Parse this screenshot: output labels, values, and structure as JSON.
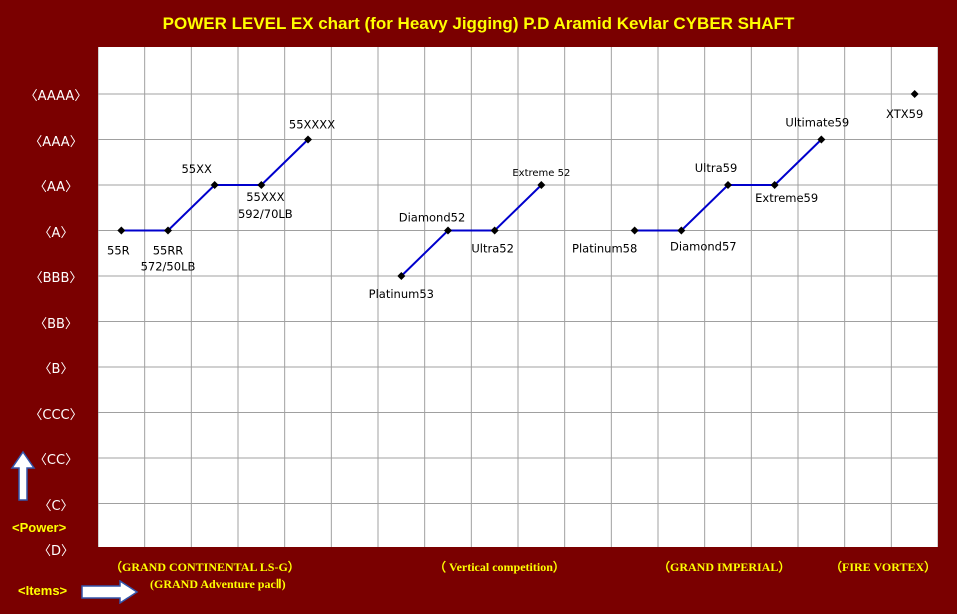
{
  "title": "POWER LEVEL EX chart (for Heavy Jigging)  P.D Aramid Kevlar CYBER SHAFT",
  "y_axis_label": "<Power>",
  "x_axis_label": "<Items>",
  "y_ticks": [
    "〈AAAA〉",
    "〈AAA〉",
    "〈AA〉",
    "〈A〉",
    "〈BBB〉",
    "〈BB〉",
    "〈B〉",
    "〈CCC〉",
    "〈CC〉",
    "〈C〉",
    "〈D〉"
  ],
  "x_groups": [
    {
      "label": "（GRAND CONTINENTAL  LS-G）",
      "row": 0
    },
    {
      "label": "(GRAND  Adventure pacⅡ)",
      "row": 1
    },
    {
      "label": "（ Vertical competition）",
      "row": 0
    },
    {
      "label": "（GRAND IMPERIAL）",
      "row": 0
    },
    {
      "label": "（FIRE VORTEX）",
      "row": 0
    }
  ],
  "colors": {
    "background": "#7a0000",
    "plot_background": "#ffffff",
    "grid": "#a0a0a0",
    "line": "#0000cc",
    "marker": "#000000",
    "title": "#ffff00",
    "axis_labels": "#ffffff"
  },
  "chart_data": {
    "type": "line",
    "title": "POWER LEVEL EX chart (for Heavy Jigging)  P.D Aramid Kevlar CYBER SHAFT",
    "y_categories": [
      "(D)",
      "(C)",
      "(CC)",
      "(CCC)",
      "(B)",
      "(BB)",
      "(BBB)",
      "(A)",
      "(AA)",
      "(AAA)",
      "(AAAA)"
    ],
    "x_slots": 18,
    "grid": true,
    "series": [
      {
        "name": "",
        "points": [
          {
            "x": 1,
            "y": "(A)",
            "label": "55R"
          },
          {
            "x": 2,
            "y": "(A)",
            "label": "55RR",
            "sublabel": "572/50LB"
          },
          {
            "x": 3,
            "y": "(AA)",
            "label": "55XX"
          },
          {
            "x": 4,
            "y": "(AA)",
            "label": "55XXX",
            "sublabel": "592/70LB"
          },
          {
            "x": 5,
            "y": "(AAA)",
            "label": "55XXXX"
          }
        ]
      },
      {
        "name": "",
        "points": [
          {
            "x": 7,
            "y": "(BBB)",
            "label": "Platinum53"
          },
          {
            "x": 8,
            "y": "(A)",
            "label": "Diamond52"
          },
          {
            "x": 9,
            "y": "(A)",
            "label": "Ultra52"
          },
          {
            "x": 10,
            "y": "(AA)",
            "label": "Extreme 52"
          }
        ]
      },
      {
        "name": "",
        "points": [
          {
            "x": 12,
            "y": "(A)",
            "label": "Platinum58"
          },
          {
            "x": 13,
            "y": "(A)",
            "label": "Diamond57"
          },
          {
            "x": 14,
            "y": "(AA)",
            "label": "Ultra59"
          },
          {
            "x": 15,
            "y": "(AA)",
            "label": "Extreme59"
          },
          {
            "x": 16,
            "y": "(AAA)",
            "label": "Ultimate59"
          }
        ]
      },
      {
        "name": "",
        "points": [
          {
            "x": 18,
            "y": "(AAAA)",
            "label": "XTX59"
          }
        ]
      }
    ]
  }
}
